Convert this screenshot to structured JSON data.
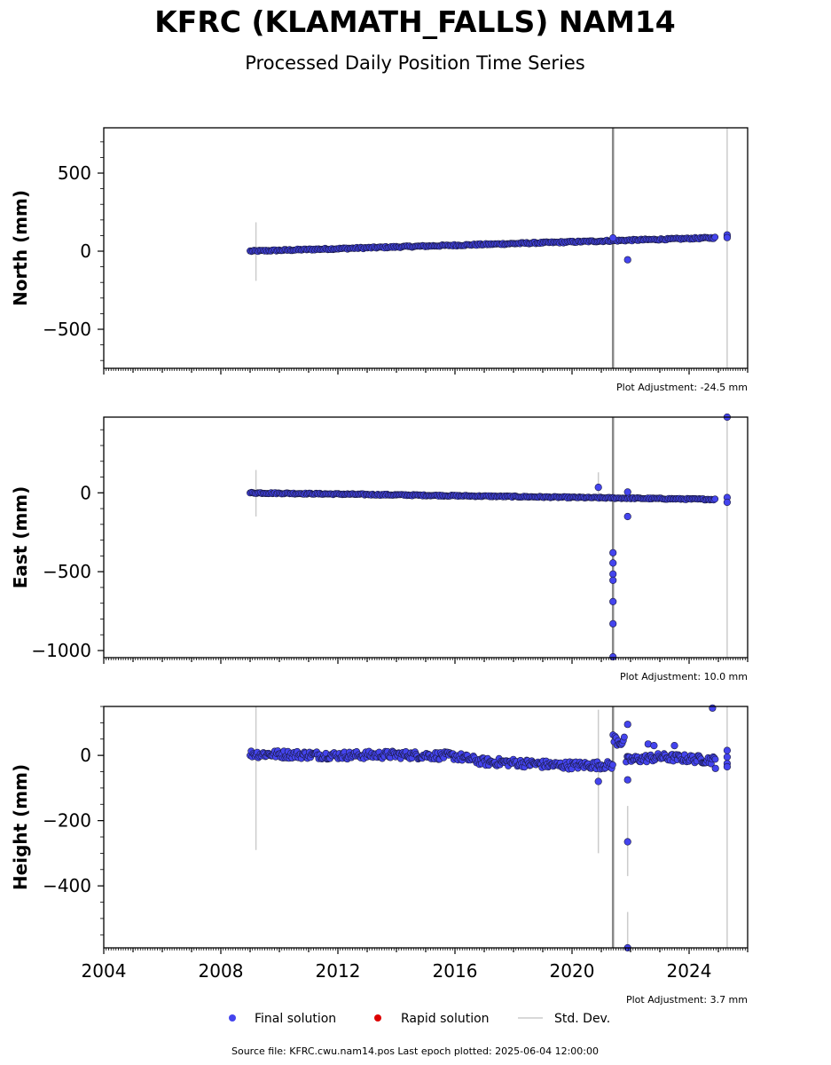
{
  "header": {
    "title": "KFRC (KLAMATH_FALLS) NAM14",
    "subtitle": "Processed Daily Position Time Series"
  },
  "legend": {
    "final": "Final solution",
    "rapid": "Rapid solution",
    "std": "Std. Dev.",
    "colors": {
      "final": "#4444ee",
      "rapid": "#dd0000",
      "std": "#cccccc"
    }
  },
  "footer": {
    "source": "Source file: KFRC.cwu.nam14.pos  Last epoch plotted: 2025-06-04 12:00:00"
  },
  "chart_data": [
    {
      "type": "scatter",
      "ylabel": "North (mm)",
      "adjustment": "Plot Adjustment: -24.5 mm",
      "xlim": [
        2004,
        2026
      ],
      "ylim": [
        -750,
        790
      ],
      "yticks": [
        -500,
        0,
        500
      ],
      "yminor_step": 100,
      "trend": {
        "start": [
          2009.0,
          0
        ],
        "end": [
          2024.9,
          86
        ],
        "scatter": 5
      },
      "outliers": [
        [
          2021.4,
          85
        ],
        [
          2021.9,
          -55
        ],
        [
          2025.3,
          92
        ],
        [
          2025.3,
          104
        ],
        [
          2025.3,
          87
        ]
      ],
      "std_lines": [
        [
          2009.2,
          -190,
          185
        ],
        [
          2025.3,
          -750,
          790
        ]
      ],
      "discontinuities": [
        2021.4
      ]
    },
    {
      "type": "scatter",
      "ylabel": "East (mm)",
      "adjustment": "Plot Adjustment: 10.0 mm",
      "xlim": [
        2004,
        2026
      ],
      "ylim": [
        -1045,
        480
      ],
      "yticks": [
        -1000,
        -500,
        0
      ],
      "yminor_step": 100,
      "trend": {
        "start": [
          2009.0,
          0
        ],
        "end": [
          2024.9,
          -42
        ],
        "scatter": 4
      },
      "outliers": [
        [
          2020.9,
          35
        ],
        [
          2021.9,
          5
        ],
        [
          2021.9,
          -150
        ],
        [
          2021.4,
          -380
        ],
        [
          2021.4,
          -445
        ],
        [
          2021.4,
          -515
        ],
        [
          2021.4,
          -555
        ],
        [
          2021.4,
          -690
        ],
        [
          2021.4,
          -830
        ],
        [
          2021.4,
          -1040
        ],
        [
          2025.3,
          -30
        ],
        [
          2025.3,
          -60
        ],
        [
          2025.3,
          480
        ]
      ],
      "std_lines": [
        [
          2009.2,
          -150,
          145
        ],
        [
          2020.9,
          -30,
          130
        ],
        [
          2025.3,
          -1045,
          480
        ]
      ],
      "discontinuities": [
        2021.4
      ]
    },
    {
      "type": "scatter",
      "ylabel": "Height (mm)",
      "adjustment": "Plot Adjustment: 3.7 mm",
      "xlim": [
        2004,
        2026
      ],
      "ylim": [
        -590,
        150
      ],
      "yticks": [
        -400,
        -200,
        0
      ],
      "yminor_step": 50,
      "xticks": [
        2004,
        2008,
        2012,
        2016,
        2020,
        2024
      ],
      "segments": [
        {
          "x0": 2009.0,
          "x1": 2021.4,
          "base": [
            [
              2009.0,
              5
            ],
            [
              2012.0,
              0
            ],
            [
              2014.0,
              2
            ],
            [
              2016.0,
              -2
            ],
            [
              2017.0,
              -20
            ],
            [
              2018.0,
              -22
            ],
            [
              2019.5,
              -30
            ],
            [
              2021.0,
              -30
            ],
            [
              2021.4,
              -30
            ]
          ],
          "amp": 12
        },
        {
          "x0": 2021.4,
          "x1": 2021.8,
          "base": [
            [
              2021.4,
              50
            ],
            [
              2021.8,
              40
            ]
          ],
          "amp": 18
        },
        {
          "x0": 2021.85,
          "x1": 2024.9,
          "base": [
            [
              2021.85,
              -15
            ],
            [
              2023.0,
              -5
            ],
            [
              2024.0,
              -10
            ],
            [
              2024.9,
              -15
            ]
          ],
          "amp": 12
        }
      ],
      "outliers": [
        [
          2020.9,
          -80
        ],
        [
          2021.9,
          95
        ],
        [
          2021.9,
          -75
        ],
        [
          2021.9,
          -265
        ],
        [
          2021.9,
          -590
        ],
        [
          2022.6,
          35
        ],
        [
          2022.8,
          30
        ],
        [
          2023.5,
          30
        ],
        [
          2024.8,
          145
        ],
        [
          2024.9,
          -40
        ],
        [
          2025.3,
          15
        ],
        [
          2025.3,
          -5
        ],
        [
          2025.3,
          -25
        ],
        [
          2025.3,
          -35
        ]
      ],
      "std_lines": [
        [
          2009.2,
          -290,
          150
        ],
        [
          2020.9,
          -300,
          140
        ],
        [
          2021.9,
          -370,
          -155
        ],
        [
          2021.9,
          -590,
          -480
        ],
        [
          2025.3,
          -590,
          150
        ]
      ],
      "discontinuities": [
        2021.4
      ]
    }
  ]
}
